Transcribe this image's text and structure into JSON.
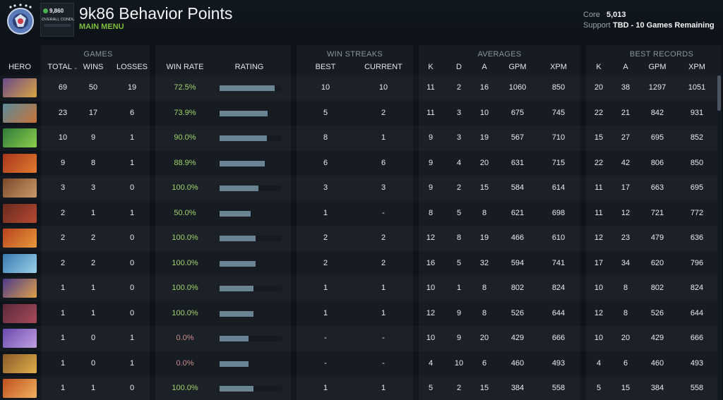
{
  "header": {
    "title": "9k86 Behavior Points",
    "main_menu": "MAIN MENU",
    "conduct_score": "9,860",
    "conduct_label": "OVERALL CONDUCT",
    "roles": [
      {
        "label": "Core",
        "value": "5,013"
      },
      {
        "label": "Support",
        "value": "TBD - 10 Games Remaining"
      }
    ]
  },
  "groups": {
    "games": "GAMES",
    "win_streaks": "WIN STREAKS",
    "averages": "AVERAGES",
    "best_records": "BEST RECORDS"
  },
  "columns": {
    "hero": "HERO",
    "total": "TOTAL",
    "wins": "WINS",
    "losses": "LOSSES",
    "win_rate": "WIN RATE",
    "rating": "RATING",
    "best": "BEST",
    "current": "CURRENT",
    "avg_k": "K",
    "avg_d": "D",
    "avg_a": "A",
    "avg_gpm": "GPM",
    "avg_xpm": "XPM",
    "rec_k": "K",
    "rec_a": "A",
    "rec_gpm": "GPM",
    "rec_xpm": "XPM"
  },
  "colors": {
    "accent_green": "#7fbf3a",
    "winrate_green": "#9fd36a",
    "rating_bar": "#6a8494"
  },
  "rows": [
    {
      "total": "69",
      "wins": "50",
      "losses": "19",
      "win_rate": "72.5%",
      "rating": 0.89,
      "best": "10",
      "current": "10",
      "k": "11",
      "d": "2",
      "a": "16",
      "gpm": "1060",
      "xpm": "850",
      "rk": "20",
      "ra": "38",
      "rgpm": "1297",
      "rxpm": "1051",
      "portrait": [
        "#6b4a8a",
        "#d9a441"
      ]
    },
    {
      "total": "23",
      "wins": "17",
      "losses": "6",
      "win_rate": "73.9%",
      "rating": 0.77,
      "best": "5",
      "current": "2",
      "k": "11",
      "d": "3",
      "a": "10",
      "gpm": "675",
      "xpm": "745",
      "rk": "22",
      "ra": "21",
      "rgpm": "842",
      "rxpm": "931",
      "portrait": [
        "#5c8a9a",
        "#c9743a"
      ]
    },
    {
      "total": "10",
      "wins": "9",
      "losses": "1",
      "win_rate": "90.0%",
      "rating": 0.76,
      "best": "8",
      "current": "1",
      "k": "9",
      "d": "3",
      "a": "19",
      "gpm": "567",
      "xpm": "710",
      "rk": "15",
      "ra": "27",
      "rgpm": "695",
      "rxpm": "852",
      "portrait": [
        "#2f7a3a",
        "#8ccf4a"
      ]
    },
    {
      "total": "9",
      "wins": "8",
      "losses": "1",
      "win_rate": "88.9%",
      "rating": 0.73,
      "best": "6",
      "current": "6",
      "k": "9",
      "d": "4",
      "a": "20",
      "gpm": "631",
      "xpm": "715",
      "rk": "22",
      "ra": "42",
      "rgpm": "806",
      "rxpm": "850",
      "portrait": [
        "#a8361e",
        "#e27b2e"
      ]
    },
    {
      "total": "3",
      "wins": "3",
      "losses": "0",
      "win_rate": "100.0%",
      "rating": 0.63,
      "best": "3",
      "current": "3",
      "k": "9",
      "d": "2",
      "a": "15",
      "gpm": "584",
      "xpm": "614",
      "rk": "11",
      "ra": "17",
      "rgpm": "663",
      "rxpm": "695",
      "portrait": [
        "#7a4a2a",
        "#c99a6a"
      ]
    },
    {
      "total": "2",
      "wins": "1",
      "losses": "1",
      "win_rate": "50.0%",
      "rating": 0.5,
      "best": "1",
      "current": "-",
      "k": "8",
      "d": "5",
      "a": "8",
      "gpm": "621",
      "xpm": "698",
      "rk": "11",
      "ra": "12",
      "rgpm": "721",
      "rxpm": "772",
      "portrait": [
        "#6a2a1e",
        "#b44a32"
      ]
    },
    {
      "total": "2",
      "wins": "2",
      "losses": "0",
      "win_rate": "100.0%",
      "rating": 0.58,
      "best": "2",
      "current": "2",
      "k": "12",
      "d": "8",
      "a": "19",
      "gpm": "466",
      "xpm": "610",
      "rk": "12",
      "ra": "23",
      "rgpm": "479",
      "rxpm": "636",
      "portrait": [
        "#b8421e",
        "#e89a3a"
      ]
    },
    {
      "total": "2",
      "wins": "2",
      "losses": "0",
      "win_rate": "100.0%",
      "rating": 0.58,
      "best": "2",
      "current": "2",
      "k": "16",
      "d": "5",
      "a": "32",
      "gpm": "594",
      "xpm": "741",
      "rk": "17",
      "ra": "34",
      "rgpm": "620",
      "rxpm": "796",
      "portrait": [
        "#3a7ab0",
        "#9ad0e8"
      ]
    },
    {
      "total": "1",
      "wins": "1",
      "losses": "0",
      "win_rate": "100.0%",
      "rating": 0.55,
      "best": "1",
      "current": "1",
      "k": "10",
      "d": "1",
      "a": "8",
      "gpm": "802",
      "xpm": "824",
      "rk": "10",
      "ra": "8",
      "rgpm": "802",
      "rxpm": "824",
      "portrait": [
        "#4a3a8a",
        "#e0a04a"
      ]
    },
    {
      "total": "1",
      "wins": "1",
      "losses": "0",
      "win_rate": "100.0%",
      "rating": 0.55,
      "best": "1",
      "current": "1",
      "k": "12",
      "d": "9",
      "a": "8",
      "gpm": "526",
      "xpm": "644",
      "rk": "12",
      "ra": "8",
      "rgpm": "526",
      "rxpm": "644",
      "portrait": [
        "#5a2a3a",
        "#a84a5a"
      ]
    },
    {
      "total": "1",
      "wins": "0",
      "losses": "1",
      "win_rate": "0.0%",
      "rating": 0.47,
      "best": "-",
      "current": "-",
      "k": "10",
      "d": "9",
      "a": "20",
      "gpm": "429",
      "xpm": "666",
      "rk": "10",
      "ra": "20",
      "rgpm": "429",
      "rxpm": "666",
      "portrait": [
        "#6a4ab0",
        "#c0a0e0"
      ]
    },
    {
      "total": "1",
      "wins": "0",
      "losses": "1",
      "win_rate": "0.0%",
      "rating": 0.47,
      "best": "-",
      "current": "-",
      "k": "4",
      "d": "10",
      "a": "6",
      "gpm": "460",
      "xpm": "493",
      "rk": "4",
      "ra": "6",
      "rgpm": "460",
      "rxpm": "493",
      "portrait": [
        "#8a5a2a",
        "#e0b04a"
      ]
    },
    {
      "total": "1",
      "wins": "1",
      "losses": "0",
      "win_rate": "100.0%",
      "rating": 0.55,
      "best": "1",
      "current": "1",
      "k": "5",
      "d": "2",
      "a": "15",
      "gpm": "384",
      "xpm": "558",
      "rk": "5",
      "ra": "15",
      "rgpm": "384",
      "rxpm": "558",
      "portrait": [
        "#c0501e",
        "#f0b060"
      ]
    }
  ]
}
